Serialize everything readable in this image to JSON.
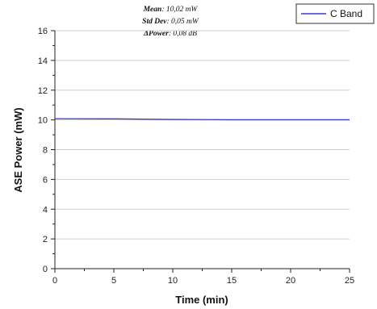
{
  "chart_data": {
    "type": "line",
    "title": "",
    "xlabel": "Time (min)",
    "ylabel": "ASE Power (mW)",
    "xlim": [
      0,
      25
    ],
    "ylim": [
      0,
      16
    ],
    "x_ticks": [
      "0",
      "5",
      "10",
      "15",
      "20",
      "25"
    ],
    "y_ticks": [
      "0",
      "2",
      "4",
      "6",
      "8",
      "10",
      "12",
      "14",
      "16"
    ],
    "grid": "horizontal",
    "legend_position": "top-right",
    "series": [
      {
        "name": "C Band",
        "color": "#3a3ad0",
        "x": [
          0,
          5,
          10,
          15,
          20,
          25
        ],
        "y": [
          10.08,
          10.07,
          10.03,
          10.01,
          10.01,
          10.01
        ]
      }
    ],
    "annotations": [
      {
        "label": "Mean",
        "value": "10,02 mW"
      },
      {
        "label": "Std Dev",
        "value": "0,05 mW"
      },
      {
        "label": "ΔPower",
        "value": "0,08 dB"
      }
    ]
  }
}
